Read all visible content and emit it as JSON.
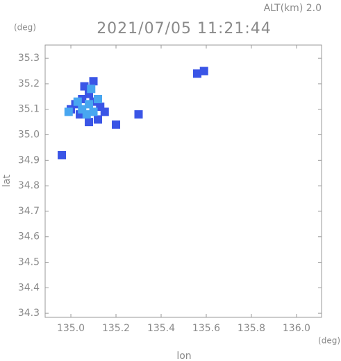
{
  "chart_data": {
    "type": "scatter",
    "title": "2021/07/05 11:21:44",
    "altitude_label": "ALT(km) 2.0",
    "y_unit": "(deg)",
    "x_unit": "(deg)",
    "xlabel": "lon",
    "ylabel": "lat",
    "xlim": [
      134.886,
      136.111
    ],
    "ylim": [
      34.284,
      35.352
    ],
    "xticks": [
      {
        "value": 135,
        "label": "135.0"
      },
      135.2,
      135.4,
      135.6,
      135.8,
      {
        "value": 136,
        "label": "136.0"
      }
    ],
    "yticks": [
      34.3,
      34.4,
      34.5,
      34.6,
      34.7,
      34.8,
      34.9,
      {
        "value": 35,
        "label": "35.0"
      },
      35.1,
      35.2,
      35.3
    ],
    "series": [
      {
        "color": "#3a55e6",
        "x": [
          135.02,
          135.05,
          135.08,
          135.1,
          135.13,
          135.15,
          135.12,
          135.08,
          135.04,
          135.0,
          135.06,
          135.1,
          134.96,
          135.56,
          135.59,
          135.3,
          135.2
        ],
        "y": [
          35.12,
          35.14,
          35.16,
          35.13,
          35.11,
          35.09,
          35.06,
          35.05,
          35.08,
          35.1,
          35.19,
          35.21,
          34.92,
          35.24,
          35.25,
          35.08,
          35.04
        ]
      },
      {
        "color": "#48a6f0",
        "x": [
          135.05,
          135.08,
          135.1,
          135.07,
          135.12,
          135.03,
          135.09,
          134.99
        ],
        "y": [
          35.1,
          35.12,
          35.09,
          35.08,
          35.14,
          35.13,
          35.18,
          35.09
        ]
      }
    ]
  }
}
